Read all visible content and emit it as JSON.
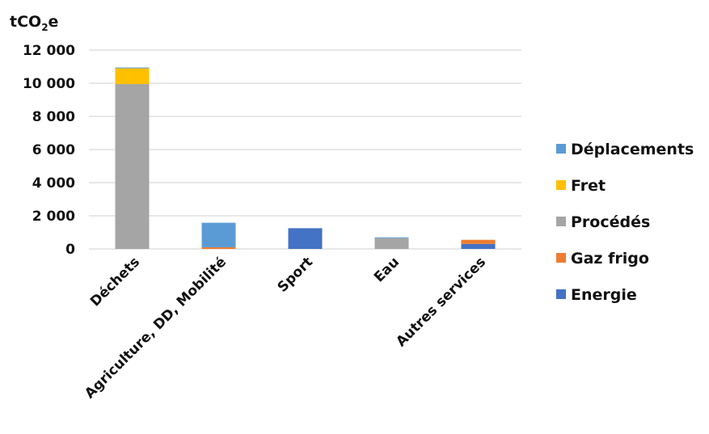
{
  "chart_data": {
    "type": "bar",
    "stacked": true,
    "ylabel": "tCO₂e",
    "ylabel_main": "tCO",
    "ylabel_sub": "2",
    "ylabel_tail": "e",
    "ylim": [
      0,
      12000
    ],
    "yticks": [
      0,
      2000,
      4000,
      6000,
      8000,
      10000,
      12000
    ],
    "ytick_labels": [
      "0",
      "2 000",
      "4 000",
      "6 000",
      "8 000",
      "10 000",
      "12 000"
    ],
    "grid": true,
    "legend_position": "right",
    "categories": [
      "Déchets",
      "Agriculture, DD, Mobilité",
      "Sport",
      "Eau",
      "Autres services"
    ],
    "series": [
      {
        "name": "Energie",
        "color": "#4472c4",
        "values": [
          0,
          0,
          1250,
          0,
          300
        ]
      },
      {
        "name": "Gaz frigo",
        "color": "#ed7d31",
        "values": [
          0,
          100,
          0,
          0,
          250
        ]
      },
      {
        "name": "Procédés",
        "color": "#a5a5a5",
        "values": [
          9950,
          0,
          0,
          650,
          0
        ]
      },
      {
        "name": "Fret",
        "color": "#ffc000",
        "values": [
          950,
          0,
          0,
          0,
          0
        ]
      },
      {
        "name": "Déplacements",
        "color": "#5b9bd5",
        "values": [
          50,
          1480,
          0,
          50,
          0
        ]
      }
    ]
  }
}
